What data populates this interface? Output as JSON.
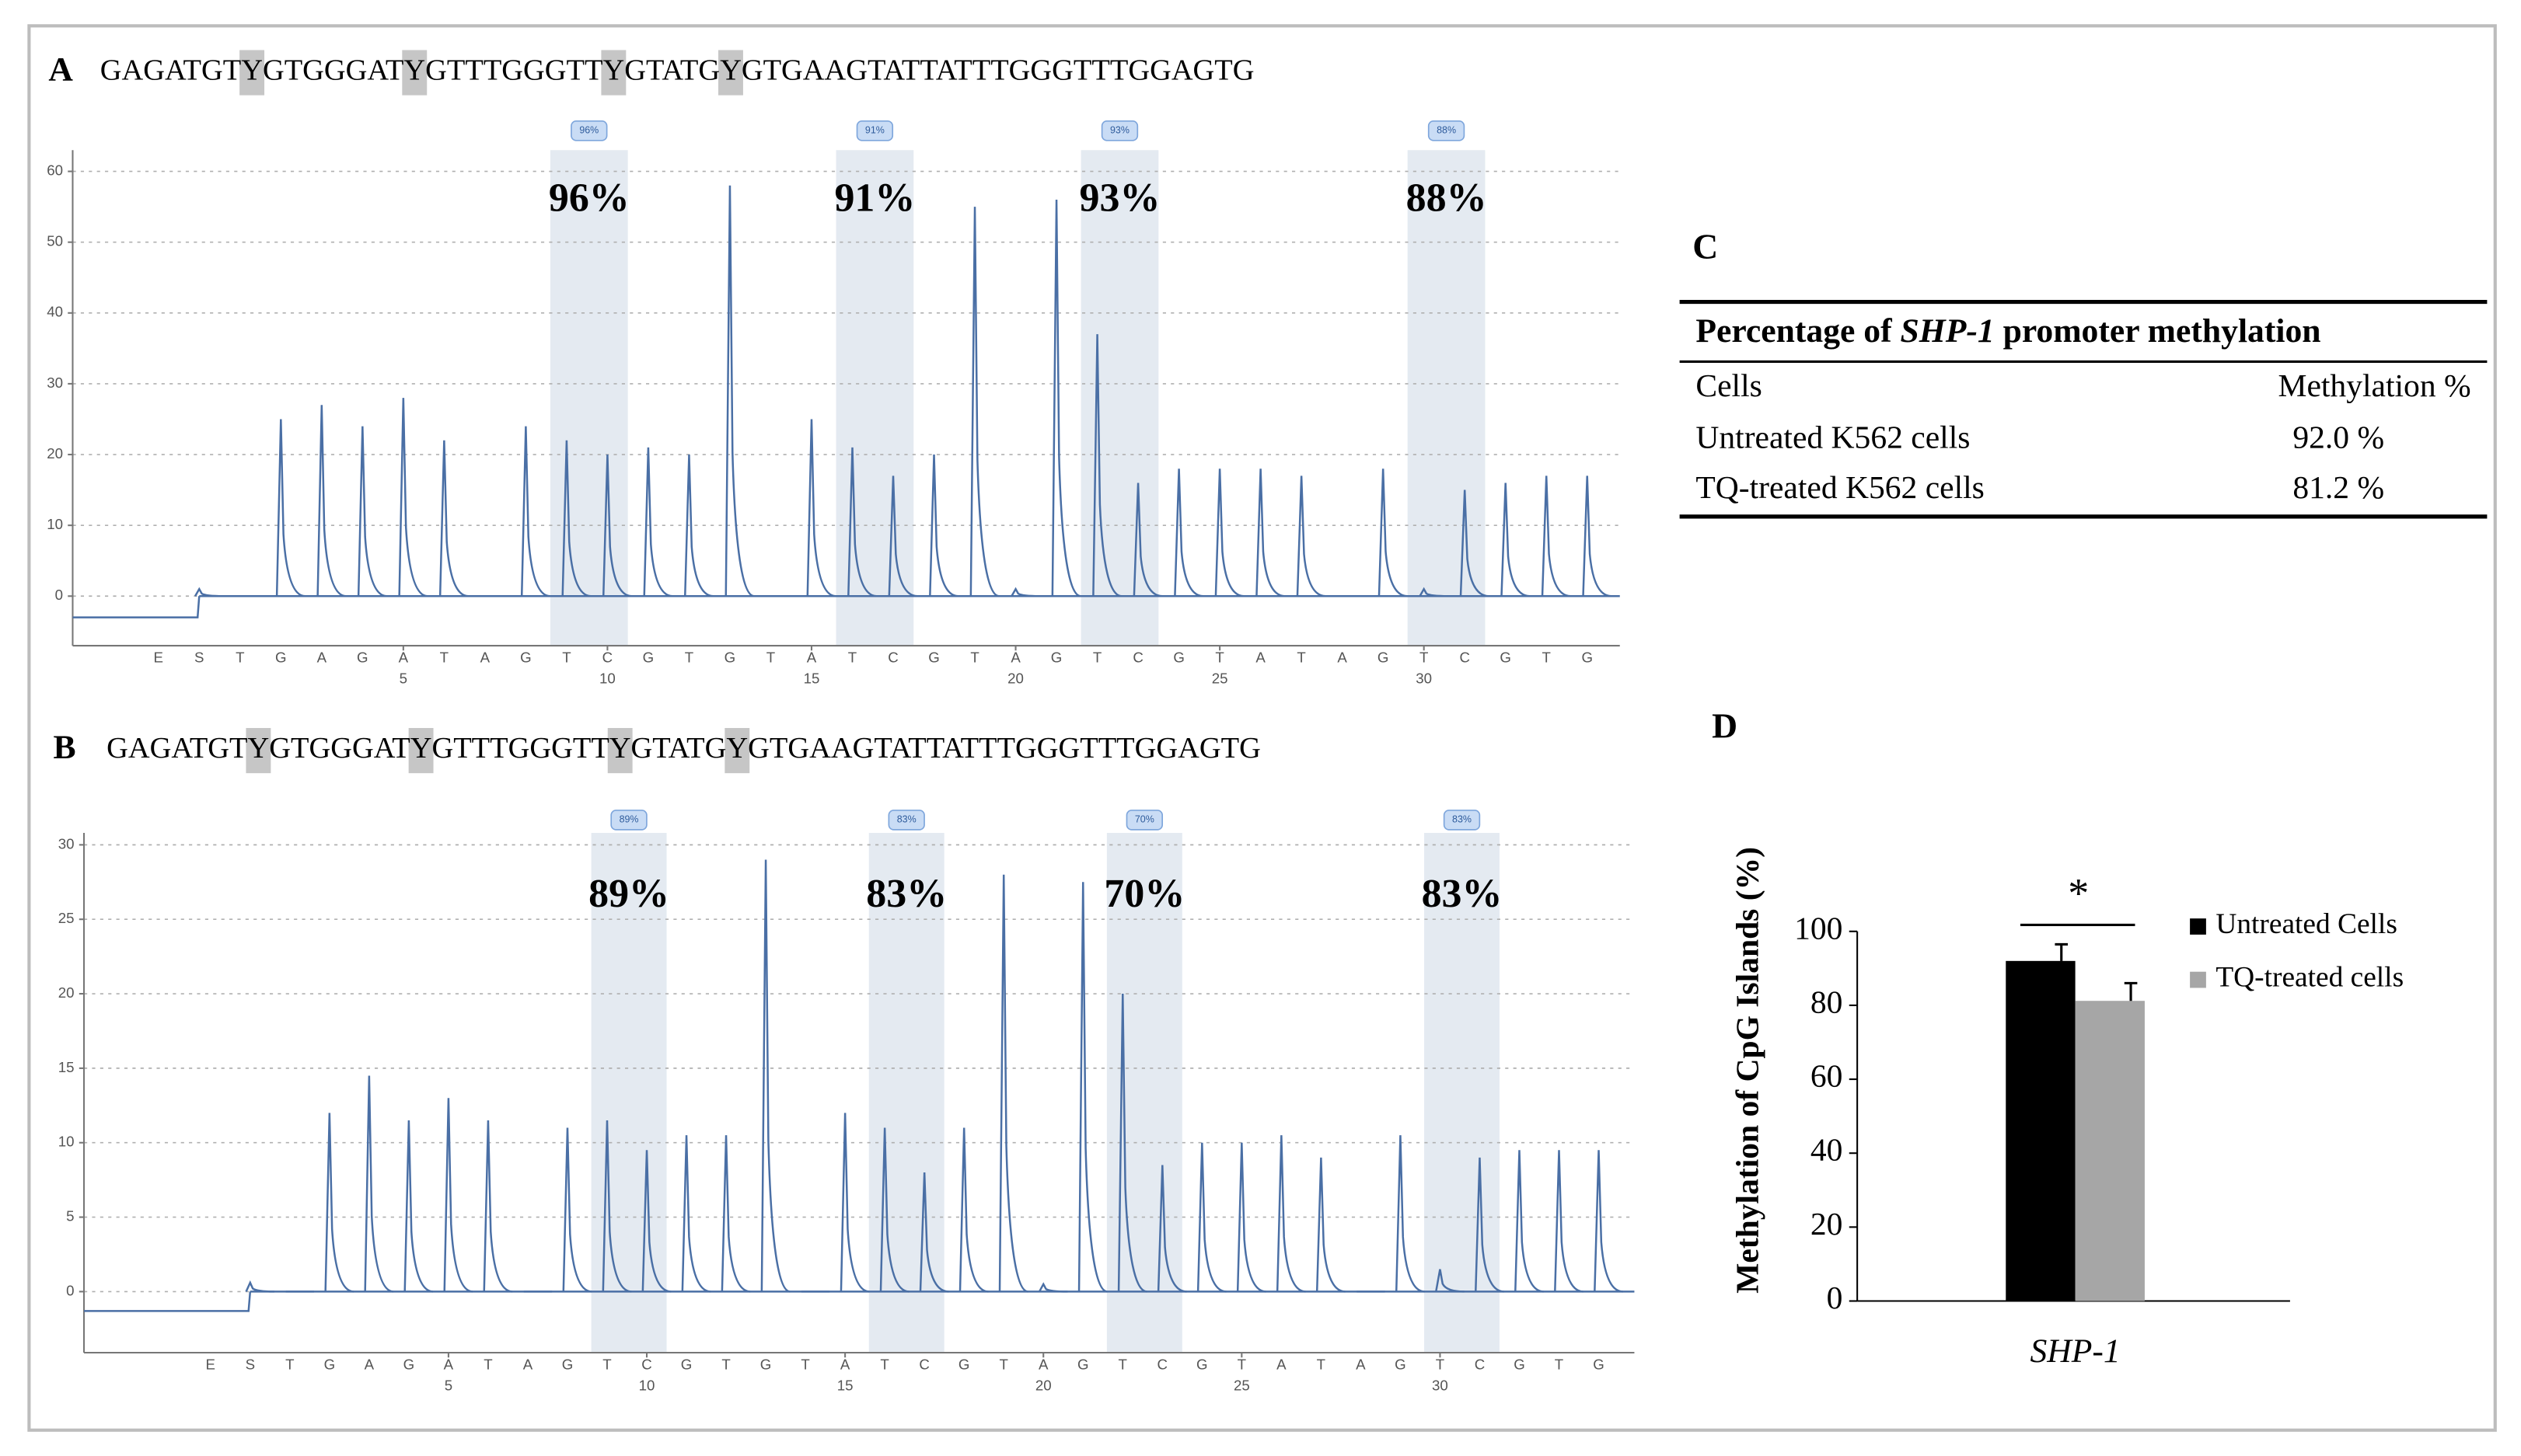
{
  "chart_data": [
    {
      "type": "pyrogram",
      "panel": "A",
      "sequence": [
        "GAGATGT",
        "Y",
        "GTGGGAT",
        "Y",
        "GTTTGGGTT",
        "Y",
        "GTATG",
        "Y",
        "GTGAAGTATTATTTGGGTTTGGAGTG"
      ],
      "categories": [
        "E",
        "S",
        "T",
        "G",
        "A",
        "G",
        "A",
        "T",
        "A",
        "G",
        "T",
        "C",
        "G",
        "T",
        "G",
        "T",
        "A",
        "T",
        "C",
        "G",
        "T",
        "A",
        "G",
        "T",
        "C",
        "G",
        "T",
        "A",
        "T",
        "A",
        "G",
        "T",
        "C",
        "G",
        "T",
        "G"
      ],
      "x": [
        -1,
        0,
        1,
        2,
        3,
        4,
        5,
        6,
        7,
        8,
        9,
        10,
        11,
        12,
        13,
        14,
        15,
        16,
        17,
        18,
        19,
        20,
        21,
        22,
        23,
        24,
        25,
        26,
        27,
        28,
        29,
        30,
        31,
        32,
        33,
        34
      ],
      "values": [
        -3,
        1,
        0,
        25,
        27,
        24,
        28,
        22,
        0,
        24,
        22,
        20,
        21,
        20,
        58,
        0,
        25,
        21,
        17,
        20,
        55,
        1,
        56,
        37,
        16,
        18,
        18,
        18,
        17,
        0,
        18,
        1,
        15,
        16,
        17,
        17
      ],
      "color": "#4a6fa5",
      "regions": [
        {
          "x": [
            9,
            10
          ],
          "value": 96,
          "label": "96%"
        },
        {
          "x": [
            16,
            17
          ],
          "value": 91,
          "label": "91%"
        },
        {
          "x": [
            22,
            23
          ],
          "value": 93,
          "label": "93%"
        },
        {
          "x": [
            30,
            31
          ],
          "value": 88,
          "label": "88%"
        }
      ],
      "xlim": [
        -3.1,
        34.8
      ],
      "xticks": [
        5,
        10,
        15,
        20,
        25,
        30
      ],
      "ylim": [
        -7,
        63
      ],
      "yticks": [
        0,
        10,
        20,
        30,
        40,
        50,
        60
      ],
      "grid": true
    },
    {
      "type": "pyrogram",
      "panel": "B",
      "sequence": [
        "GAGATGT",
        "Y",
        "GTGGGAT",
        "Y",
        "GTTTGGGTT",
        "Y",
        "GTATG",
        "Y",
        "GTGAAGTATTATTTGGGTTTGGAGTG"
      ],
      "categories": [
        "E",
        "S",
        "T",
        "G",
        "A",
        "G",
        "A",
        "T",
        "A",
        "G",
        "T",
        "C",
        "G",
        "T",
        "G",
        "T",
        "A",
        "T",
        "C",
        "G",
        "T",
        "A",
        "G",
        "T",
        "C",
        "G",
        "T",
        "A",
        "T",
        "A",
        "G",
        "T",
        "C",
        "G",
        "T",
        "G"
      ],
      "x": [
        -1,
        0,
        1,
        2,
        3,
        4,
        5,
        6,
        7,
        8,
        9,
        10,
        11,
        12,
        13,
        14,
        15,
        16,
        17,
        18,
        19,
        20,
        21,
        22,
        23,
        24,
        25,
        26,
        27,
        28,
        29,
        30,
        31,
        32,
        33,
        34
      ],
      "values": [
        -1.3,
        0.6,
        0,
        12,
        14.5,
        11.5,
        13,
        11.5,
        0,
        11,
        11.5,
        9.5,
        10.5,
        10.5,
        29,
        0,
        12,
        11,
        8,
        11,
        28,
        0.5,
        27.5,
        20,
        8.5,
        10,
        10,
        10.5,
        9,
        0,
        10.5,
        1.5,
        9,
        9.5,
        9.5,
        9.5
      ],
      "color": "#4a6fa5",
      "regions": [
        {
          "x": [
            9,
            10
          ],
          "value": 89,
          "label": "89%"
        },
        {
          "x": [
            16,
            17
          ],
          "value": 83,
          "label": "83%"
        },
        {
          "x": [
            22,
            23
          ],
          "value": 70,
          "label": "70%"
        },
        {
          "x": [
            30,
            31
          ],
          "value": 83,
          "label": "83%"
        }
      ],
      "xlim": [
        -4.19,
        34.9
      ],
      "xticks": [
        5,
        10,
        15,
        20,
        25,
        30
      ],
      "ylim": [
        -4.1,
        30.8
      ],
      "yticks": [
        0,
        5,
        10,
        15,
        20,
        25,
        30
      ],
      "grid": true
    },
    {
      "type": "bar",
      "panel": "D",
      "ylabel": "Methylation of  CpG Islands (%)",
      "categories": [
        "SHP-1"
      ],
      "series": [
        {
          "name": "Untreated Cells",
          "color": "#000000",
          "values": [
            92
          ],
          "errors": [
            4.5
          ]
        },
        {
          "name": "TQ-treated cells",
          "color": "#a6a6a6",
          "values": [
            81.2
          ],
          "errors": [
            4.8
          ]
        }
      ],
      "annotation": "*",
      "ylim": [
        0,
        100
      ],
      "yticks": [
        0,
        20,
        40,
        60,
        80,
        100
      ],
      "legend": "right"
    }
  ],
  "table": {
    "panel": "C",
    "title": [
      "Percentage of ",
      "SHP-1",
      " promoter methylation"
    ],
    "header": [
      "Cells",
      "Methylation %"
    ],
    "rows": [
      [
        "Untreated K562 cells",
        "92.0 %"
      ],
      [
        "TQ-treated K562 cells",
        "81.2 %"
      ]
    ]
  }
}
